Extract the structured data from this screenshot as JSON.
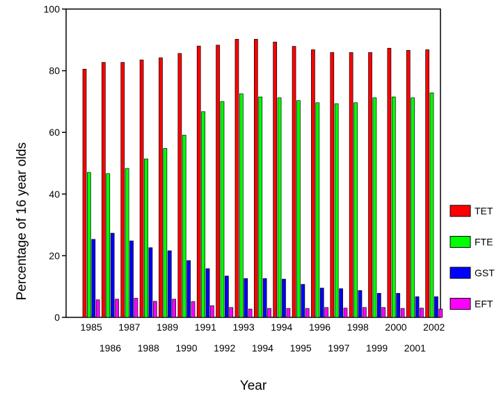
{
  "chart_data": {
    "type": "bar",
    "title": "",
    "xlabel": "Year",
    "ylabel": "Percentage of 16 year olds",
    "ylim": [
      0,
      100
    ],
    "yticks": [
      0,
      20,
      40,
      60,
      80,
      100
    ],
    "grid": false,
    "legend_position": "right",
    "categories": [
      "1985",
      "1986",
      "1987",
      "1988",
      "1989",
      "1990",
      "1991",
      "1992",
      "1993",
      "1994",
      "1994",
      "1995",
      "1996",
      "1997",
      "1998",
      "1999",
      "2000",
      "2001",
      "2002"
    ],
    "series": [
      {
        "name": "TET",
        "color": "#ff0000",
        "values": [
          80.5,
          82.7,
          82.7,
          83.5,
          84.2,
          85.6,
          88.0,
          88.3,
          90.2,
          90.2,
          89.3,
          87.9,
          86.8,
          85.9,
          85.9,
          85.9,
          87.3,
          86.6,
          86.8
        ]
      },
      {
        "name": "FTE",
        "color": "#00ff00",
        "values": [
          47.0,
          46.6,
          48.3,
          51.4,
          54.8,
          59.1,
          66.7,
          70.0,
          72.5,
          71.5,
          71.2,
          70.3,
          69.6,
          69.3,
          69.6,
          71.2,
          71.5,
          71.2,
          72.8
        ]
      },
      {
        "name": "GST",
        "color": "#0000ff",
        "values": [
          25.3,
          27.3,
          24.8,
          22.6,
          21.6,
          18.4,
          15.8,
          13.4,
          12.6,
          12.6,
          12.4,
          10.7,
          9.5,
          9.3,
          8.7,
          7.8,
          7.8,
          6.7,
          6.7
        ]
      },
      {
        "name": "EFT",
        "color": "#ff00ff",
        "values": [
          5.7,
          5.9,
          6.2,
          5.2,
          5.9,
          5.1,
          3.8,
          3.2,
          2.7,
          2.9,
          2.9,
          2.9,
          3.2,
          3.0,
          3.2,
          3.2,
          2.9,
          3.0,
          2.7
        ]
      }
    ]
  }
}
